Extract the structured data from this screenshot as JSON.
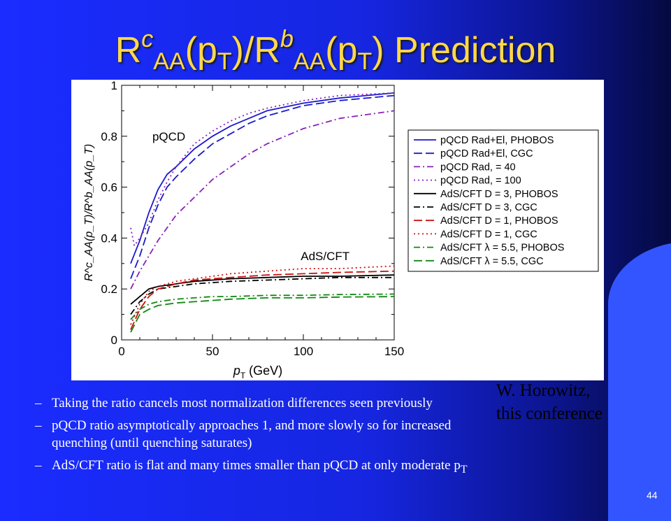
{
  "slide": {
    "title": {
      "r": "R",
      "c": "c",
      "aa": "AA",
      "pt": "(p",
      "t": "T",
      "close": ")/",
      "b": "b",
      "prediction": ") Prediction"
    },
    "credit_line1": "W. Horowitz,",
    "credit_line2": "this conference",
    "bullets": [
      "Taking the ratio cancels most normalization differences seen previously",
      "pQCD ratio asymptotically approaches 1, and more slowly so for increased",
      "quenching (until quenching saturates)",
      "AdS/CFT ratio is flat and many times smaller than pQCD at only moderate p",
      "T"
    ],
    "bullet_dash": "–",
    "page_number": "44"
  },
  "chart_data": {
    "type": "line",
    "xlim": [
      0,
      150
    ],
    "ylim": [
      0,
      1
    ],
    "xticks": [
      "0",
      "50",
      "100",
      "150"
    ],
    "yticks": [
      "0",
      "0.2",
      "0.4",
      "0.6",
      "0.8",
      "1"
    ],
    "xlabel_main": "p",
    "xlabel_sub": "T",
    "xlabel_unit": " (GeV)",
    "ylabel": "R^c_AA(p_T)/R^b_AA(p_T)",
    "annotations": [
      "pQCD",
      "AdS/CFT"
    ],
    "legend_position": "right",
    "series": [
      {
        "name": "pQCD Rad+El, PHOBOS",
        "color": "#1a1acc",
        "dash": "solid",
        "x": [
          5,
          10,
          15,
          20,
          25,
          30,
          40,
          50,
          60,
          70,
          80,
          100,
          120,
          150
        ],
        "y": [
          0.3,
          0.39,
          0.5,
          0.59,
          0.65,
          0.68,
          0.75,
          0.8,
          0.84,
          0.87,
          0.9,
          0.93,
          0.95,
          0.97
        ]
      },
      {
        "name": "pQCD Rad+El, CGC",
        "color": "#1a1acc",
        "dash": "longdash",
        "x": [
          5,
          10,
          15,
          20,
          25,
          30,
          40,
          50,
          60,
          70,
          80,
          100,
          120,
          150
        ],
        "y": [
          0.24,
          0.33,
          0.44,
          0.53,
          0.6,
          0.64,
          0.71,
          0.77,
          0.81,
          0.85,
          0.88,
          0.92,
          0.94,
          0.96
        ]
      },
      {
        "name": "pQCD Rad,     = 40",
        "color": "#8822bb",
        "dash": "dashdot",
        "x": [
          5,
          10,
          15,
          20,
          25,
          30,
          40,
          50,
          60,
          70,
          80,
          100,
          120,
          150
        ],
        "y": [
          0.2,
          0.27,
          0.33,
          0.39,
          0.44,
          0.49,
          0.56,
          0.63,
          0.68,
          0.73,
          0.77,
          0.83,
          0.87,
          0.9
        ]
      },
      {
        "name": "pQCD Rad,     = 100",
        "color": "#8822bb",
        "dash": "dotted",
        "x": [
          5,
          7,
          10,
          15,
          20,
          25,
          30,
          40,
          50,
          60,
          70,
          80,
          100,
          120,
          150
        ],
        "y": [
          0.44,
          0.37,
          0.4,
          0.46,
          0.55,
          0.62,
          0.68,
          0.77,
          0.82,
          0.86,
          0.89,
          0.91,
          0.94,
          0.96,
          0.97
        ]
      },
      {
        "name": "AdS/CFT D = 3, PHOBOS",
        "color": "#000000",
        "dash": "solid",
        "x": [
          5,
          10,
          15,
          20,
          30,
          40,
          50,
          60,
          80,
          100,
          120,
          150
        ],
        "y": [
          0.14,
          0.17,
          0.2,
          0.21,
          0.22,
          0.23,
          0.235,
          0.24,
          0.245,
          0.25,
          0.25,
          0.255
        ]
      },
      {
        "name": "AdS/CFT D = 3, CGC",
        "color": "#000000",
        "dash": "dashdot",
        "x": [
          5,
          10,
          15,
          20,
          30,
          40,
          50,
          60,
          80,
          100,
          120,
          150
        ],
        "y": [
          0.1,
          0.15,
          0.18,
          0.2,
          0.21,
          0.22,
          0.225,
          0.23,
          0.235,
          0.24,
          0.245,
          0.245
        ]
      },
      {
        "name": "AdS/CFT D = 1, PHOBOS",
        "color": "#cc1111",
        "dash": "longdash",
        "x": [
          5,
          10,
          15,
          20,
          30,
          40,
          50,
          60,
          80,
          100,
          120,
          150
        ],
        "y": [
          0.04,
          0.12,
          0.17,
          0.2,
          0.22,
          0.235,
          0.24,
          0.245,
          0.255,
          0.26,
          0.265,
          0.27
        ]
      },
      {
        "name": "AdS/CFT D = 1, CGC",
        "color": "#cc1111",
        "dash": "dotted",
        "x": [
          5,
          10,
          15,
          20,
          30,
          40,
          50,
          60,
          80,
          100,
          120,
          150
        ],
        "y": [
          0.06,
          0.14,
          0.19,
          0.21,
          0.23,
          0.24,
          0.25,
          0.26,
          0.27,
          0.28,
          0.28,
          0.29
        ]
      },
      {
        "name": "AdS/CFT λ = 5.5, PHOBOS",
        "color": "#118811",
        "dash": "dashdot",
        "x": [
          5,
          10,
          15,
          20,
          30,
          40,
          50,
          60,
          80,
          100,
          120,
          150
        ],
        "y": [
          0.08,
          0.12,
          0.14,
          0.15,
          0.16,
          0.165,
          0.17,
          0.17,
          0.175,
          0.175,
          0.178,
          0.18
        ]
      },
      {
        "name": "AdS/CFT λ = 5.5, CGC",
        "color": "#118811",
        "dash": "longdash",
        "x": [
          5,
          10,
          15,
          20,
          30,
          40,
          50,
          60,
          80,
          100,
          120,
          150
        ],
        "y": [
          0.03,
          0.1,
          0.12,
          0.135,
          0.145,
          0.15,
          0.155,
          0.16,
          0.165,
          0.165,
          0.168,
          0.17
        ]
      }
    ]
  }
}
